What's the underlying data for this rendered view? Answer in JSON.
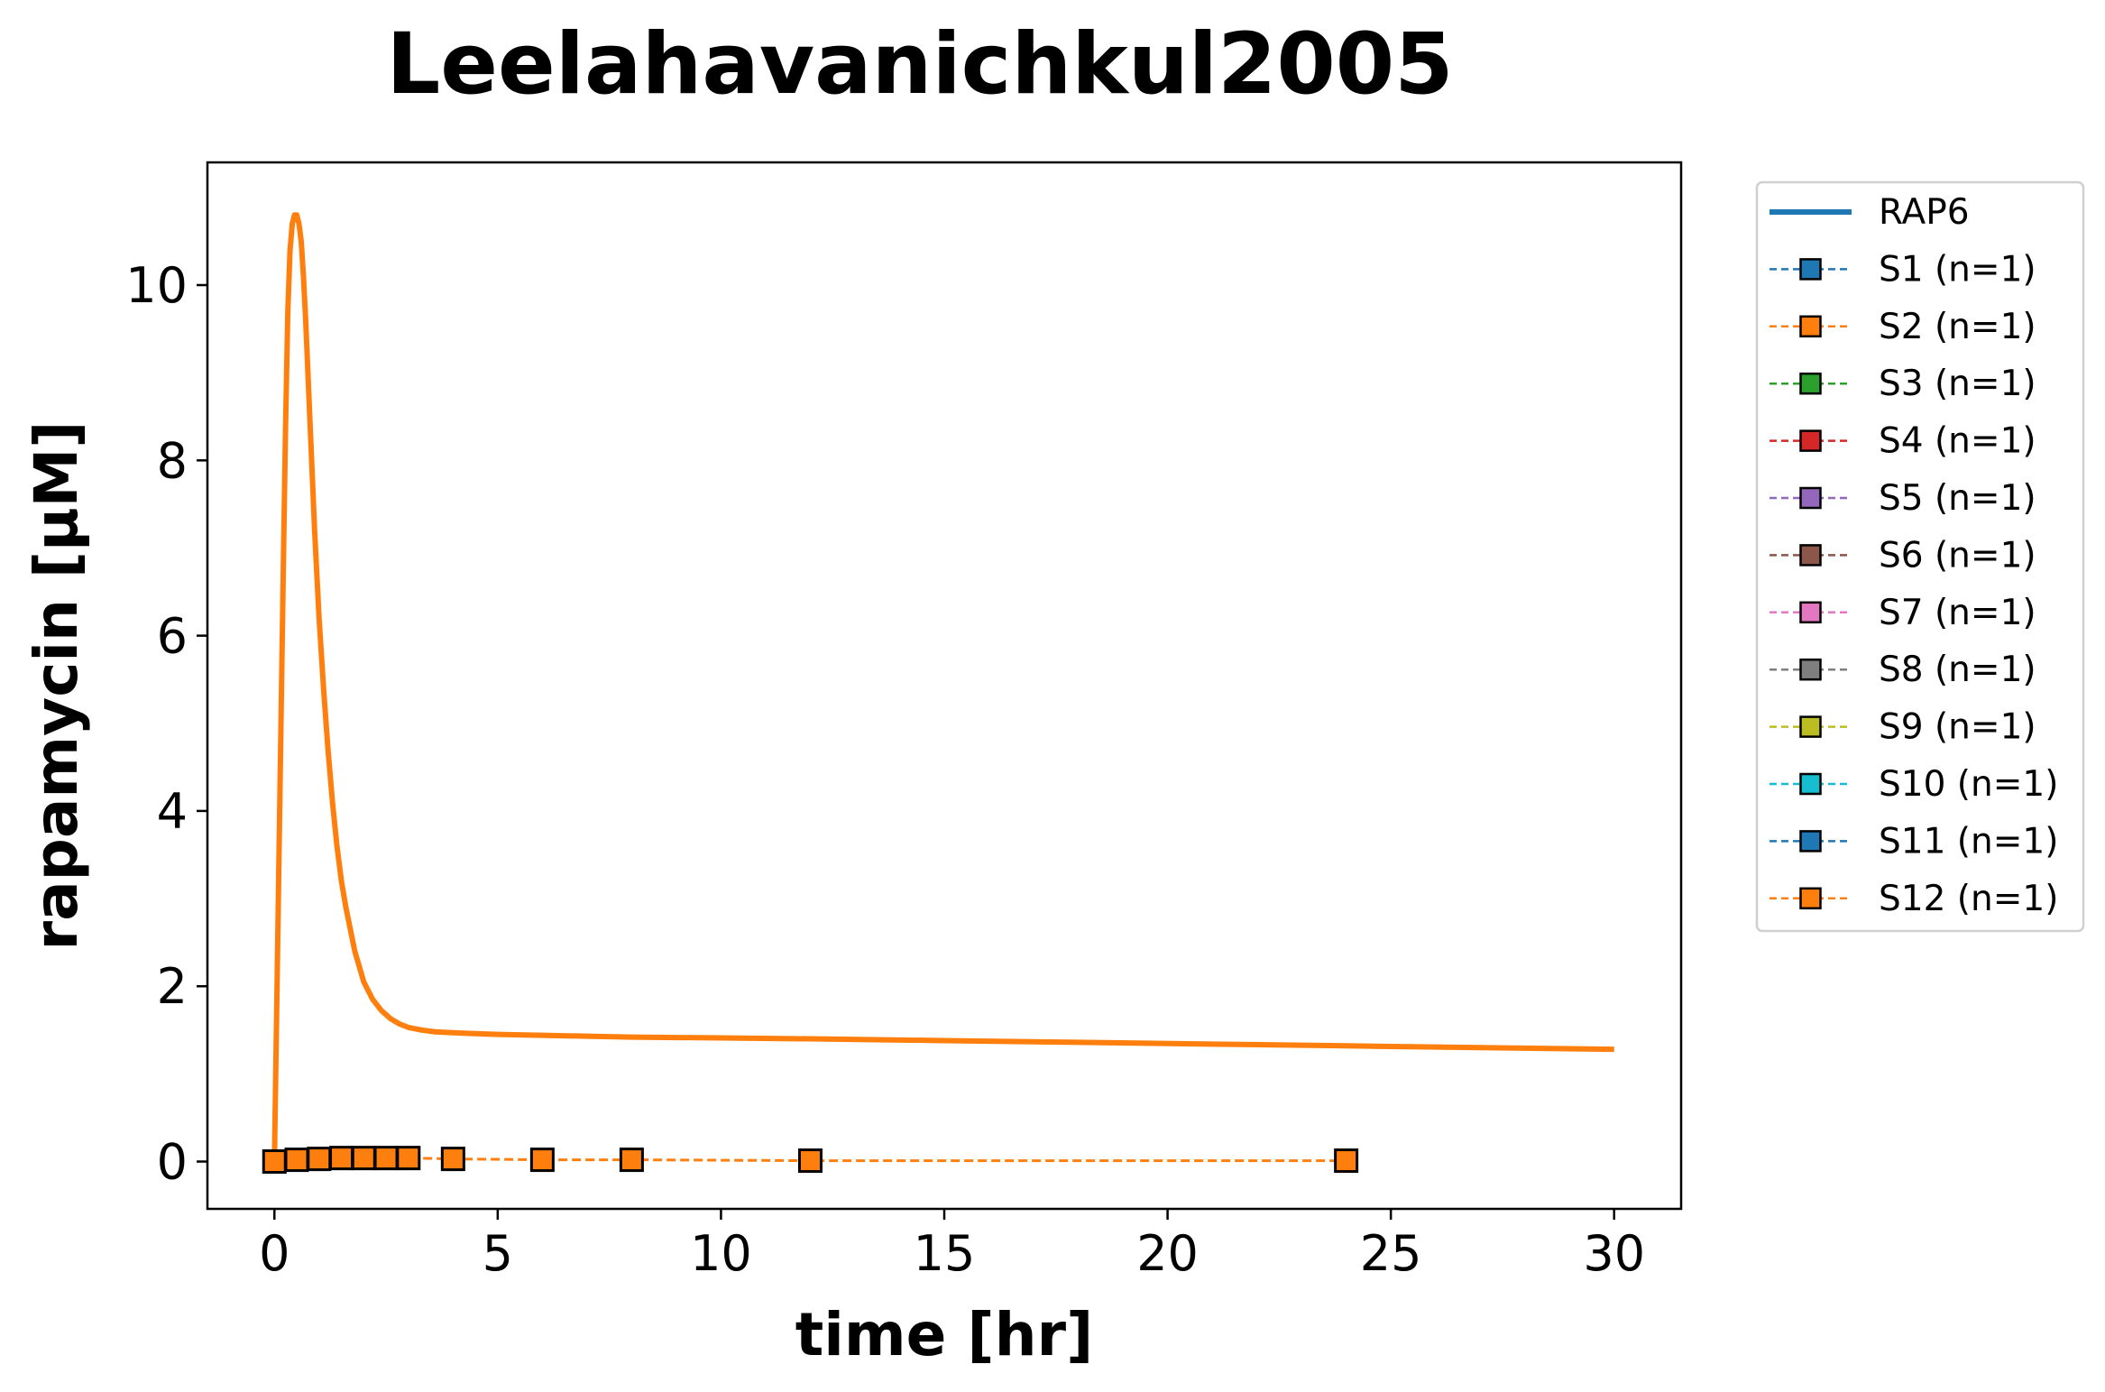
{
  "chart_data": {
    "type": "line",
    "title": "Leelahavanichkul2005",
    "xlabel": "time [hr]",
    "ylabel": "rapamycin [µM]",
    "xlim": [
      -1.5,
      31.5
    ],
    "ylim": [
      -0.54,
      11.4
    ],
    "x_ticks": [
      0,
      5,
      10,
      15,
      20,
      25,
      30
    ],
    "y_ticks": [
      0,
      2,
      4,
      6,
      8,
      10
    ],
    "grid": false,
    "legend_position": "outside upper right",
    "simulation": {
      "name": "RAP6",
      "color": "#ff7f0e",
      "legend_color": "#1f77b4",
      "x": [
        0,
        0.05,
        0.1,
        0.15,
        0.2,
        0.25,
        0.3,
        0.35,
        0.4,
        0.45,
        0.5,
        0.55,
        0.6,
        0.65,
        0.7,
        0.75,
        0.8,
        0.85,
        0.9,
        0.95,
        1.0,
        1.1,
        1.2,
        1.3,
        1.4,
        1.5,
        1.6,
        1.8,
        2.0,
        2.2,
        2.4,
        2.6,
        2.8,
        3.0,
        3.3,
        3.6,
        4.0,
        4.5,
        5,
        6,
        7,
        8,
        10,
        12,
        15,
        18,
        21,
        24,
        27,
        30
      ],
      "y": [
        0.0,
        1.7,
        3.4,
        5.1,
        6.8,
        8.4,
        9.7,
        10.4,
        10.7,
        10.8,
        10.8,
        10.7,
        10.5,
        10.1,
        9.6,
        9.0,
        8.4,
        7.8,
        7.2,
        6.7,
        6.2,
        5.4,
        4.7,
        4.1,
        3.6,
        3.2,
        2.9,
        2.4,
        2.05,
        1.85,
        1.72,
        1.63,
        1.57,
        1.53,
        1.5,
        1.48,
        1.47,
        1.46,
        1.45,
        1.44,
        1.43,
        1.42,
        1.41,
        1.4,
        1.38,
        1.36,
        1.34,
        1.32,
        1.3,
        1.28
      ]
    },
    "series": [
      {
        "name": "S1 (n=1)",
        "color": "#1f77b4",
        "x": [],
        "y": []
      },
      {
        "name": "S2 (n=1)",
        "color": "#ff7f0e",
        "x": [],
        "y": []
      },
      {
        "name": "S3 (n=1)",
        "color": "#2ca02c",
        "x": [],
        "y": []
      },
      {
        "name": "S4 (n=1)",
        "color": "#d62728",
        "x": [],
        "y": []
      },
      {
        "name": "S5 (n=1)",
        "color": "#9467bd",
        "x": [],
        "y": []
      },
      {
        "name": "S6 (n=1)",
        "color": "#8c564b",
        "x": [],
        "y": []
      },
      {
        "name": "S7 (n=1)",
        "color": "#e377c2",
        "x": [],
        "y": []
      },
      {
        "name": "S8 (n=1)",
        "color": "#7f7f7f",
        "x": [],
        "y": []
      },
      {
        "name": "S9 (n=1)",
        "color": "#bcbd22",
        "x": [],
        "y": []
      },
      {
        "name": "S10 (n=1)",
        "color": "#17becf",
        "x": [],
        "y": []
      },
      {
        "name": "S11 (n=1)",
        "color": "#1f77b4",
        "x": [],
        "y": []
      },
      {
        "name": "S12 (n=1)",
        "color": "#ff7f0e",
        "x": [
          0,
          0.5,
          1,
          1.5,
          2,
          2.5,
          3,
          4,
          6,
          8,
          12,
          24
        ],
        "y": [
          0.0,
          0.02,
          0.03,
          0.04,
          0.04,
          0.04,
          0.04,
          0.03,
          0.02,
          0.02,
          0.01,
          0.01
        ]
      }
    ]
  }
}
